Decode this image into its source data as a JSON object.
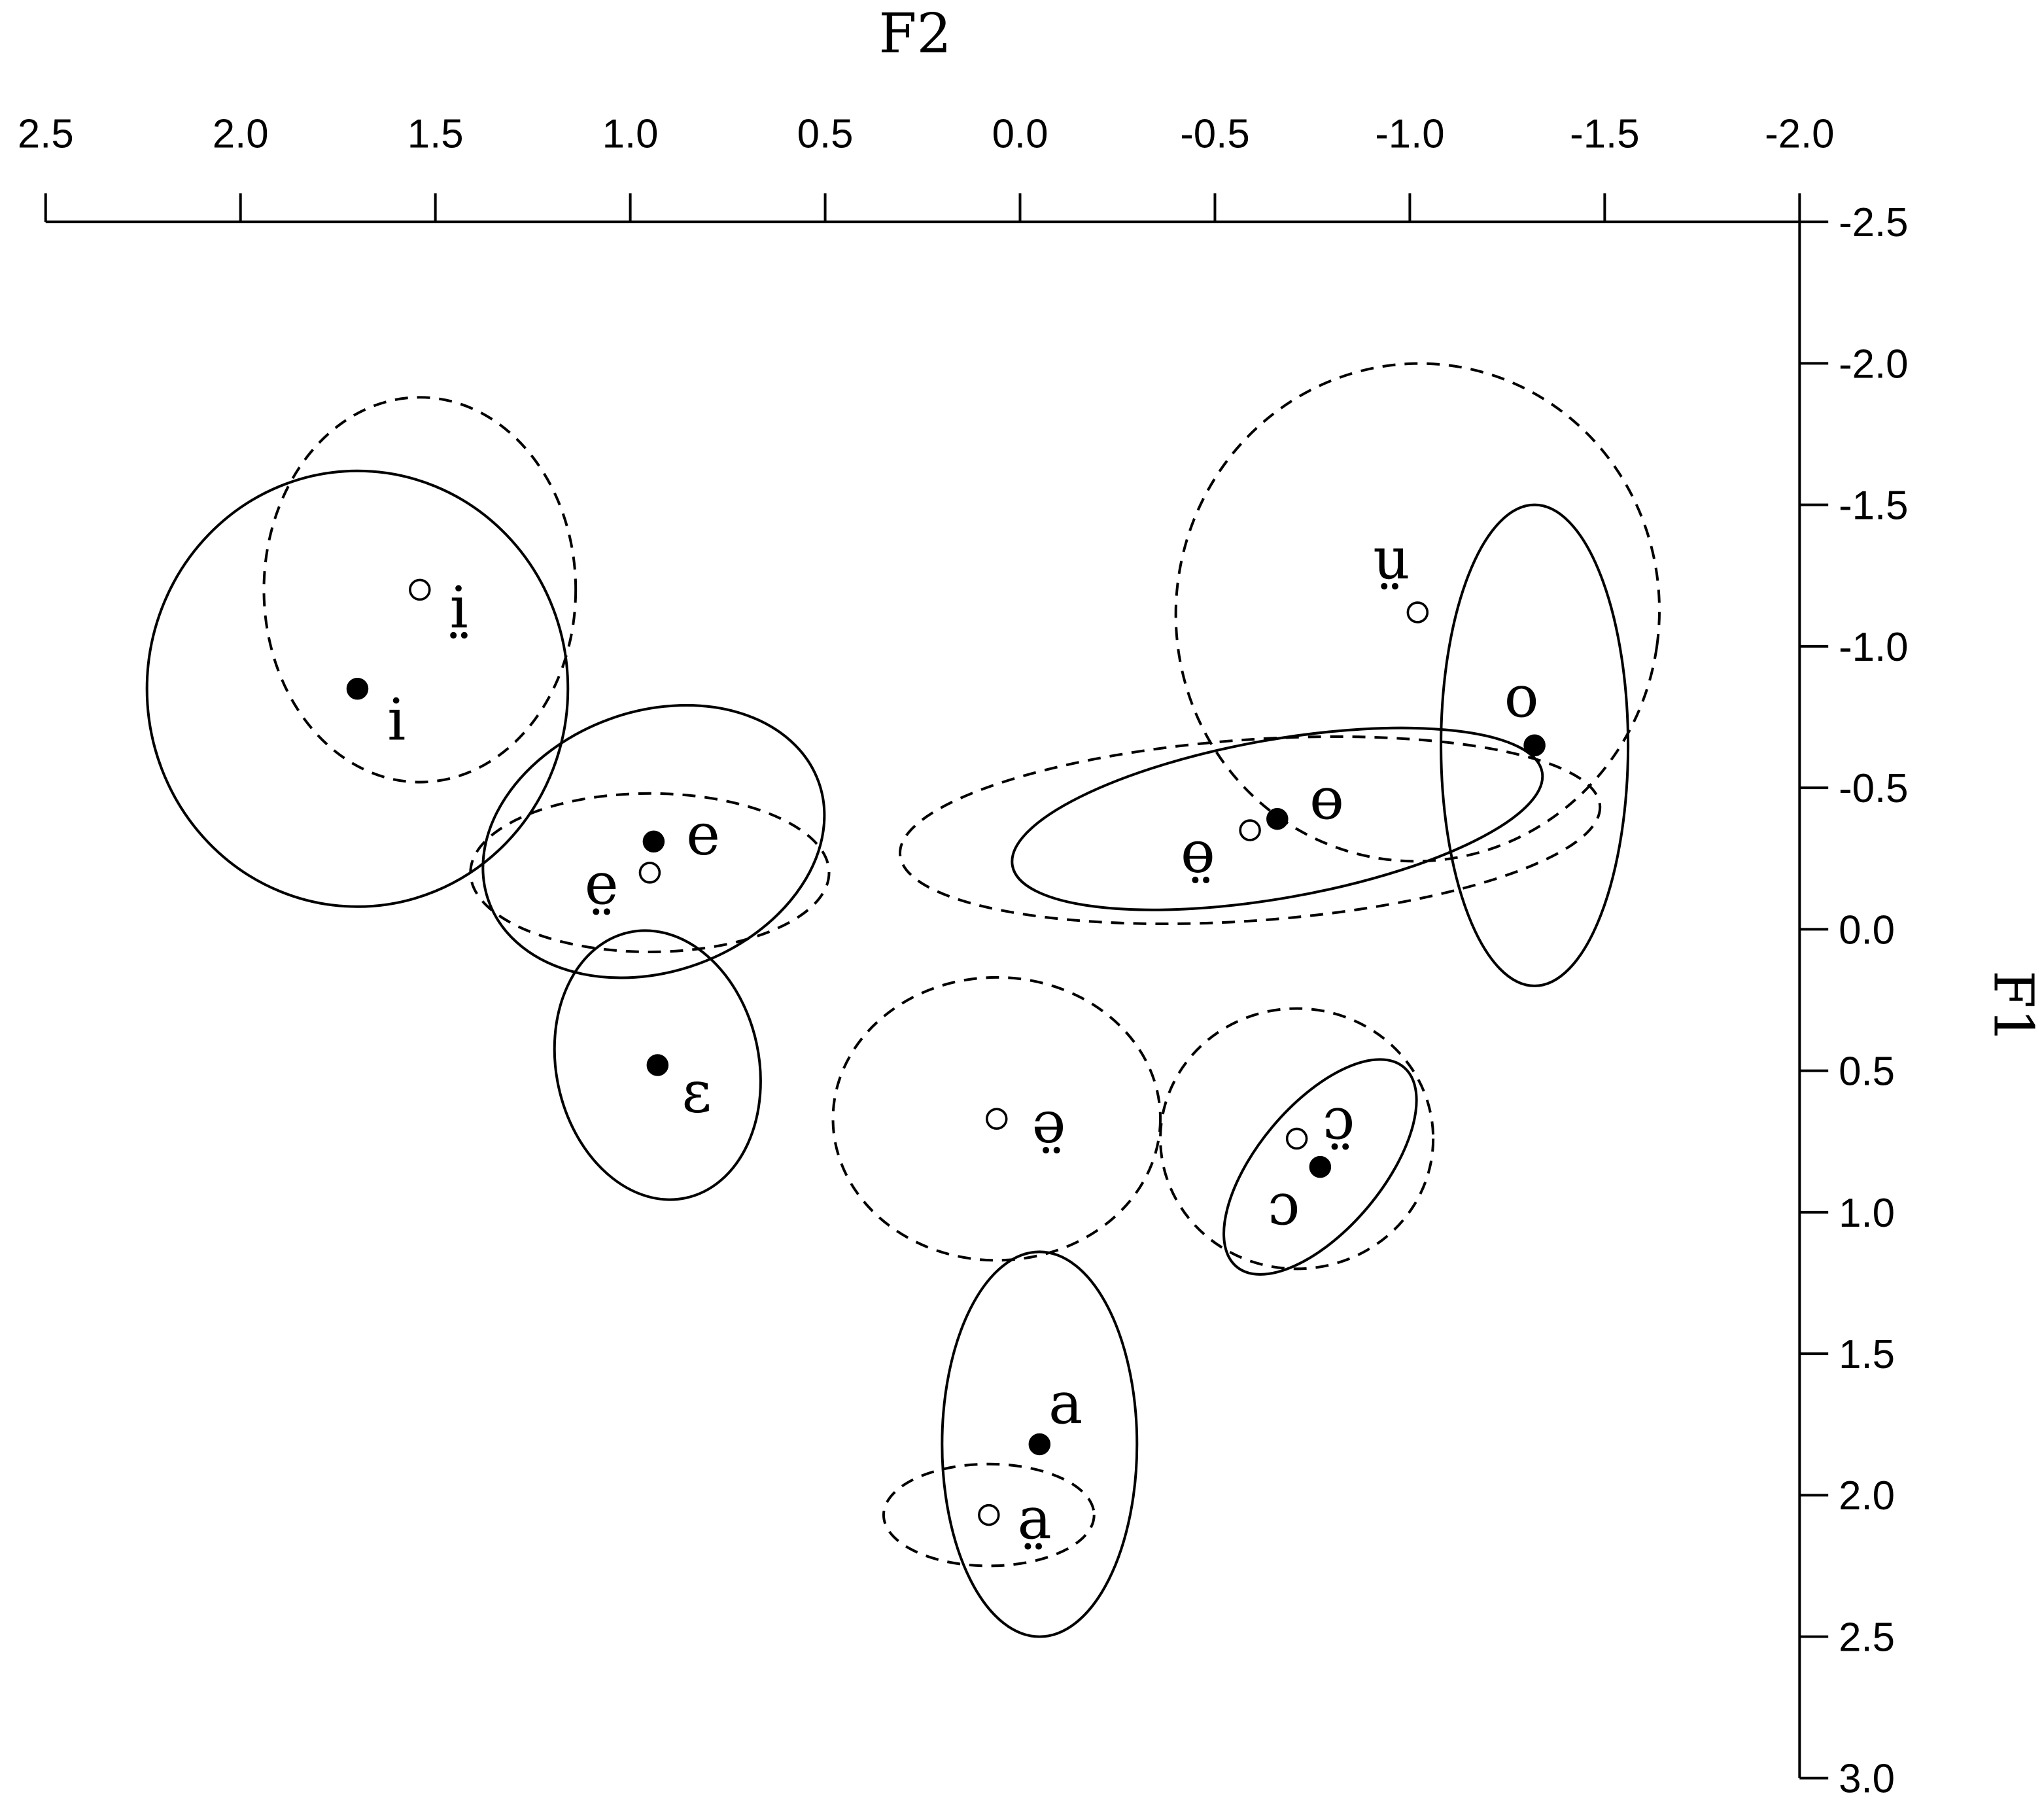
{
  "chart_data": {
    "type": "scatter",
    "title": "",
    "xlabel": "F2",
    "ylabel": "F1",
    "xlim": [
      2.5,
      -2.0
    ],
    "ylim": [
      -2.5,
      3.0
    ],
    "x_axis_position": "top",
    "y_axis_position": "right",
    "x_reversed": true,
    "y_reversed": true,
    "grid": false,
    "x_ticks": [
      "2.5",
      "2.0",
      "1.5",
      "1.0",
      "0.5",
      "0.0",
      "-0.5",
      "-1.0",
      "-1.5",
      "-2.0"
    ],
    "y_ticks": [
      "-2.5",
      "-2.0",
      "-1.5",
      "-1.0",
      "-0.5",
      "0.0",
      "0.5",
      "1.0",
      "1.5",
      "2.0",
      "2.5",
      "3.0"
    ],
    "marker_styles": {
      "filled": "#000000",
      "open": "#ffffff"
    },
    "points": [
      {
        "label": "i",
        "F2": 1.7,
        "F1": -0.85,
        "marker": "filled",
        "ellipse": {
          "rx": 0.54,
          "ry": 0.77,
          "angle": 0,
          "style": "solid"
        }
      },
      {
        "label": "i̤",
        "F2": 1.54,
        "F1": -1.2,
        "marker": "open",
        "ellipse": {
          "rx": 0.4,
          "ry": 0.68,
          "angle": 0,
          "style": "dashed"
        }
      },
      {
        "label": "e",
        "F2": 0.94,
        "F1": -0.31,
        "marker": "filled",
        "ellipse": {
          "rx": 0.45,
          "ry": 0.46,
          "angle": -20,
          "style": "solid"
        }
      },
      {
        "label": "e̤",
        "F2": 0.95,
        "F1": -0.2,
        "marker": "open",
        "ellipse": {
          "rx": 0.46,
          "ry": 0.28,
          "angle": 0,
          "style": "dashed"
        }
      },
      {
        "label": "ɛ",
        "F2": 0.93,
        "F1": 0.48,
        "marker": "filled",
        "ellipse": {
          "rx": 0.26,
          "ry": 0.48,
          "angle": -12,
          "style": "solid"
        }
      },
      {
        "label": "ə̤",
        "F2": 0.06,
        "F1": 0.67,
        "marker": "open",
        "ellipse": {
          "rx": 0.42,
          "ry": 0.5,
          "angle": 0,
          "style": "dashed"
        }
      },
      {
        "label": "a",
        "F2": -0.05,
        "F1": 1.82,
        "marker": "filled",
        "ellipse": {
          "rx": 0.25,
          "ry": 0.68,
          "angle": 0,
          "style": "solid"
        }
      },
      {
        "label": "a̤",
        "F2": 0.08,
        "F1": 2.07,
        "marker": "open",
        "ellipse": {
          "rx": 0.27,
          "ry": 0.18,
          "angle": 0,
          "style": "dashed"
        }
      },
      {
        "label": "ɔ",
        "F2": -0.77,
        "F1": 0.84,
        "marker": "filled",
        "ellipse": {
          "rx": 0.16,
          "ry": 0.46,
          "angle": 40,
          "style": "solid"
        }
      },
      {
        "label": "ɔ̤",
        "F2": -0.71,
        "F1": 0.74,
        "marker": "open",
        "ellipse": {
          "rx": 0.35,
          "ry": 0.46,
          "angle": 0,
          "style": "dashed"
        }
      },
      {
        "label": "ɵ",
        "F2": -0.66,
        "F1": -0.39,
        "marker": "filled",
        "ellipse": {
          "rx": 0.69,
          "ry": 0.28,
          "angle": -10,
          "style": "solid"
        }
      },
      {
        "label": "ɵ̤",
        "F2": -0.59,
        "F1": -0.35,
        "marker": "open",
        "ellipse": {
          "rx": 0.9,
          "ry": 0.32,
          "angle": -4,
          "style": "dashed"
        }
      },
      {
        "label": "o",
        "F2": -1.32,
        "F1": -0.65,
        "marker": "filled",
        "ellipse": {
          "rx": 0.24,
          "ry": 0.85,
          "angle": 0,
          "style": "solid"
        }
      },
      {
        "label": "ṳ",
        "F2": -1.02,
        "F1": -1.12,
        "marker": "open",
        "ellipse": {
          "rx": 0.62,
          "ry": 0.88,
          "angle": 8,
          "style": "dashed"
        }
      }
    ]
  }
}
